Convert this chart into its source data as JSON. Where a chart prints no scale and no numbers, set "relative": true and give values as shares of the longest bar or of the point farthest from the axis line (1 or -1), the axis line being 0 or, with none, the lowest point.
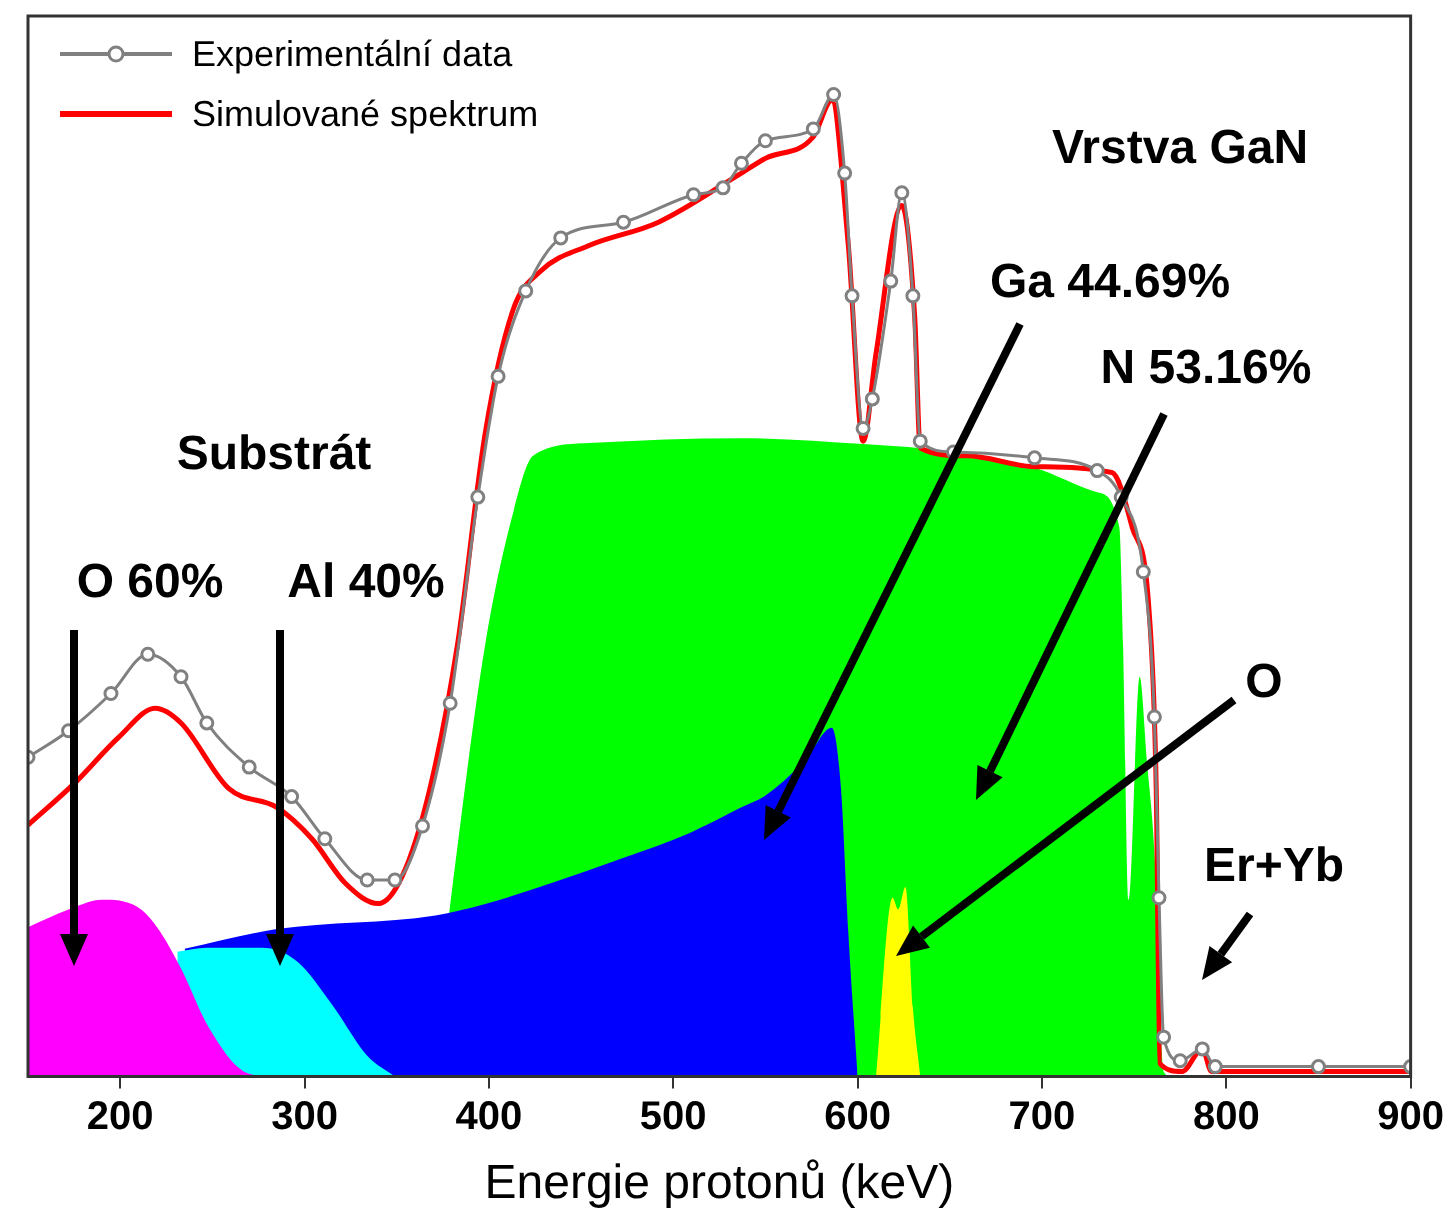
{
  "chart_data": {
    "type": "line",
    "relative": true,
    "xlabel": "Energie protonů (keV)",
    "xlim": [
      150,
      900
    ],
    "xticks": [
      200,
      300,
      400,
      500,
      600,
      700,
      800,
      900
    ],
    "grid": false,
    "legend": "top left",
    "annotations": [
      "Vrstva GaN",
      "Substrát",
      "O 60%",
      "Al 40%",
      "Ga 44.69%",
      "N 53.16%",
      "O",
      "Er+Yb"
    ],
    "series": [
      {
        "name": "Experimentální data",
        "marker": "circle",
        "color": "#808080",
        "x": [
          150,
          172,
          195,
          215,
          233,
          247,
          270,
          293,
          311,
          334,
          349,
          364,
          379,
          394,
          405,
          420,
          439,
          473,
          511,
          527,
          537,
          550,
          576,
          587,
          593,
          597,
          603,
          608,
          618,
          624,
          630,
          634,
          652,
          696,
          730,
          743,
          755,
          761,
          763.5,
          766,
          775,
          787,
          794,
          850,
          900
        ],
        "values": [
          0.325,
          0.352,
          0.39,
          0.43,
          0.407,
          0.36,
          0.315,
          0.285,
          0.242,
          0.2,
          0.2,
          0.255,
          0.38,
          0.59,
          0.713,
          0.8,
          0.854,
          0.87,
          0.898,
          0.905,
          0.93,
          0.953,
          0.965,
          1.0,
          0.92,
          0.795,
          0.66,
          0.69,
          0.81,
          0.9,
          0.795,
          0.647,
          0.636,
          0.63,
          0.617,
          0.59,
          0.514,
          0.366,
          0.182,
          0.04,
          0.016,
          0.028,
          0.01,
          0.01,
          0.01
        ]
      },
      {
        "name": "Simulované spektrum",
        "color": "#ff0000",
        "x": [
          150,
          176,
          199,
          219,
          233,
          259,
          285,
          304,
          322,
          340,
          353,
          368,
          383,
          398,
          413,
          428,
          454,
          492,
          537,
          550,
          576,
          586,
          595,
          603,
          610,
          624,
          631,
          634,
          659,
          696,
          738,
          749,
          758,
          762,
          764,
          776,
          787,
          792,
          900
        ],
        "values": [
          0.256,
          0.3,
          0.345,
          0.375,
          0.36,
          0.293,
          0.274,
          0.242,
          0.197,
          0.176,
          0.204,
          0.293,
          0.44,
          0.655,
          0.78,
          0.82,
          0.846,
          0.87,
          0.92,
          0.935,
          0.957,
          0.994,
          0.846,
          0.647,
          0.736,
          0.887,
          0.773,
          0.64,
          0.632,
          0.621,
          0.615,
          0.559,
          0.477,
          0.293,
          0.013,
          0.005,
          0.028,
          0.005,
          0.005
        ]
      },
      {
        "type": "area",
        "color": "#ff00ff",
        "x": [
          150,
          172,
          190,
          209,
          220,
          233,
          248,
          267,
          280
        ],
        "values": [
          0.152,
          0.17,
          0.18,
          0.173,
          0.152,
          0.11,
          0.05,
          0.005,
          0
        ]
      },
      {
        "type": "area",
        "color": "#00ffff",
        "x": [
          231,
          247,
          277,
          296,
          315,
          334,
          349
        ],
        "values": [
          0.127,
          0.131,
          0.131,
          0.117,
          0.073,
          0.021,
          0
        ]
      },
      {
        "type": "area",
        "color": "#0000ff",
        "x": [
          235,
          285,
          371,
          397,
          434,
          472,
          509,
          537,
          550,
          572,
          586,
          591,
          595,
          600
        ],
        "values": [
          0.13,
          0.15,
          0.164,
          0.175,
          0.197,
          0.222,
          0.248,
          0.274,
          0.286,
          0.323,
          0.355,
          0.293,
          0.146,
          0
        ]
      },
      {
        "type": "area",
        "color": "#ffff00",
        "x": [
          610,
          619,
          622,
          626,
          630,
          634
        ],
        "values": [
          0,
          0.182,
          0.17,
          0.193,
          0.07,
          0
        ]
      },
      {
        "type": "area",
        "color": "#00ff00",
        "x": [
          368,
          382,
          398,
          413,
          424,
          454,
          537,
          603,
          652,
          696,
          730,
          742,
          744,
          747,
          753,
          757,
          761,
          766,
          770
        ],
        "values": [
          0,
          0.22,
          0.44,
          0.573,
          0.632,
          0.645,
          0.65,
          0.644,
          0.636,
          0.62,
          0.595,
          0.559,
          0.44,
          0.18,
          0.407,
          0.32,
          0.23,
          0.005,
          0
        ]
      }
    ]
  }
}
